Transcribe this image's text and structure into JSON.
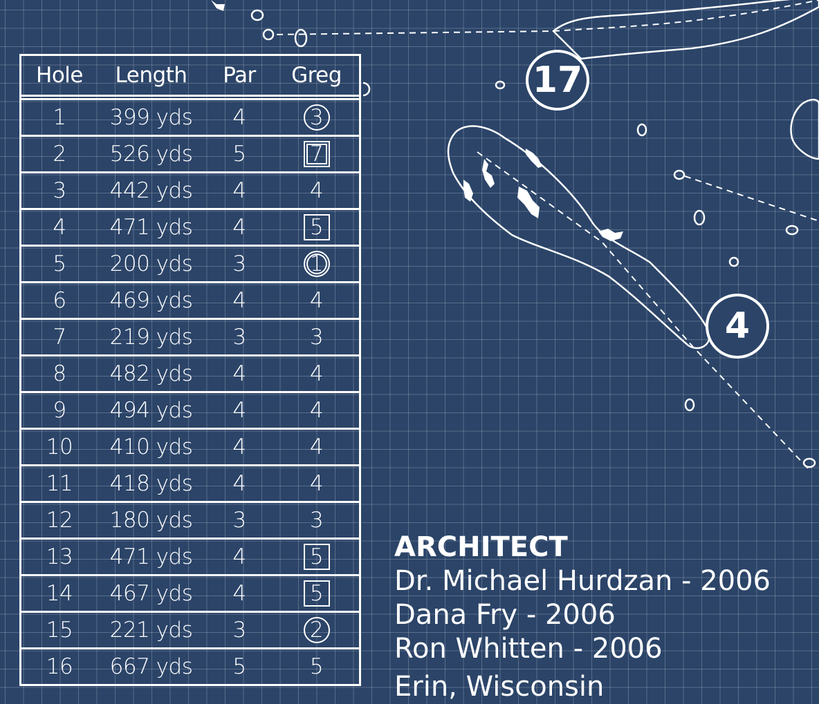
{
  "scorecard": {
    "headers": [
      "Hole",
      "Length",
      "Par",
      "Greg"
    ],
    "rows": [
      {
        "hole": "1",
        "length": "399 yds",
        "par": "4",
        "score": "3",
        "mark": "circle"
      },
      {
        "hole": "2",
        "length": "526 yds",
        "par": "5",
        "score": "7",
        "mark": "dsquare"
      },
      {
        "hole": "3",
        "length": "442 yds",
        "par": "4",
        "score": "4",
        "mark": "none"
      },
      {
        "hole": "4",
        "length": "471 yds",
        "par": "4",
        "score": "5",
        "mark": "square"
      },
      {
        "hole": "5",
        "length": "200 yds",
        "par": "3",
        "score": "1",
        "mark": "dcircle"
      },
      {
        "hole": "6",
        "length": "469 yds",
        "par": "4",
        "score": "4",
        "mark": "none"
      },
      {
        "hole": "7",
        "length": "219 yds",
        "par": "3",
        "score": "3",
        "mark": "none"
      },
      {
        "hole": "8",
        "length": "482 yds",
        "par": "4",
        "score": "4",
        "mark": "none"
      },
      {
        "hole": "9",
        "length": "494 yds",
        "par": "4",
        "score": "4",
        "mark": "none"
      },
      {
        "hole": "10",
        "length": "410 yds",
        "par": "4",
        "score": "4",
        "mark": "none"
      },
      {
        "hole": "11",
        "length": "418 yds",
        "par": "4",
        "score": "4",
        "mark": "none"
      },
      {
        "hole": "12",
        "length": "180 yds",
        "par": "3",
        "score": "3",
        "mark": "none"
      },
      {
        "hole": "13",
        "length": "471 yds",
        "par": "4",
        "score": "5",
        "mark": "square"
      },
      {
        "hole": "14",
        "length": "467 yds",
        "par": "4",
        "score": "5",
        "mark": "square"
      },
      {
        "hole": "15",
        "length": "221 yds",
        "par": "3",
        "score": "2",
        "mark": "circle"
      },
      {
        "hole": "16",
        "length": "667 yds",
        "par": "5",
        "score": "5",
        "mark": "none"
      }
    ]
  },
  "architect": {
    "title": "ARCHITECT",
    "lines": [
      "Dr. Michael Hurdzan  -  2006",
      "Dana Fry  -  2006",
      "Ron Whitten  -  2006"
    ],
    "location": "Erin, Wisconsin"
  },
  "map": {
    "hole_markers": [
      "17",
      "4"
    ]
  },
  "colors": {
    "background": "#2b4468",
    "lines": "#ffffff"
  }
}
